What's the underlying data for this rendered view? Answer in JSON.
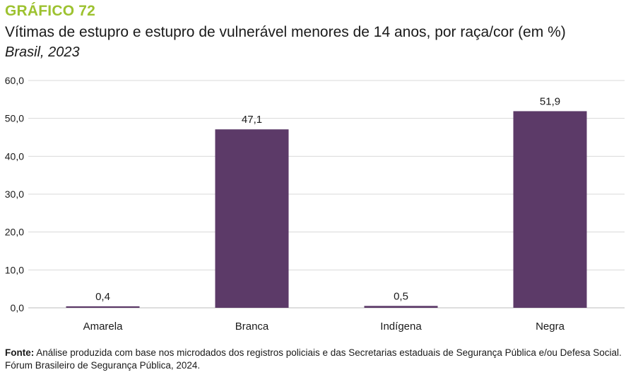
{
  "header": {
    "label": "GRÁFICO 72",
    "title": "Vítimas de estupro e estupro de vulnerável menores de 14 anos, por raça/cor (em %)",
    "subtitle": "Brasil, 2023"
  },
  "footer": {
    "source_label": "Fonte:",
    "source_text": "Análise produzida com base nos microdados dos registros policiais e das Secretarias estaduais de Segurança Pública e/ou Defesa Social. Fórum Brasileiro de Segurança Pública, 2024."
  },
  "colors": {
    "bar": "#5c3a68",
    "accent": "#9dc230",
    "grid": "#d9d9d9"
  },
  "chart_data": {
    "type": "bar",
    "title": "Vítimas de estupro e estupro de vulnerável menores de 14 anos, por raça/cor (em %)",
    "xlabel": "",
    "ylabel": "",
    "categories": [
      "Amarela",
      "Branca",
      "Indígena",
      "Negra"
    ],
    "values": [
      0.4,
      47.1,
      0.5,
      51.9
    ],
    "value_labels": [
      "0,4",
      "47,1",
      "0,5",
      "51,9"
    ],
    "ylim": [
      0,
      60
    ],
    "yticks": [
      0,
      10,
      20,
      30,
      40,
      50,
      60
    ],
    "ytick_labels": [
      "0,0",
      "10,0",
      "20,0",
      "30,0",
      "40,0",
      "50,0",
      "60,0"
    ],
    "grid": true
  }
}
